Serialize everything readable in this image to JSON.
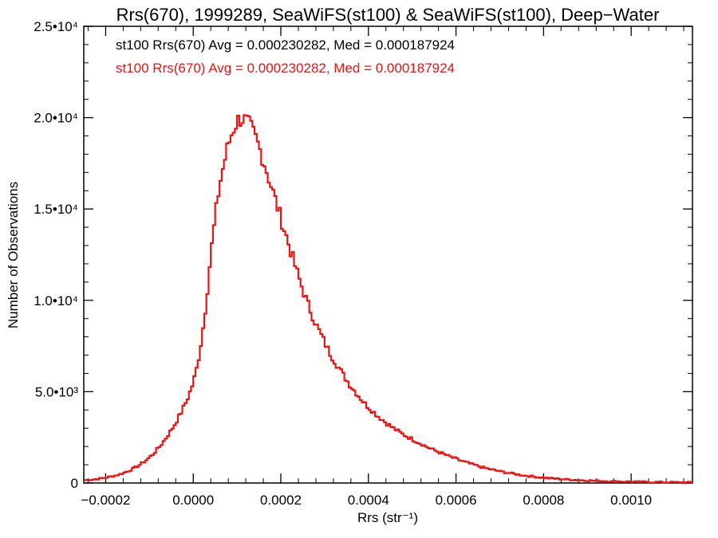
{
  "chart_data": {
    "type": "line",
    "title": "Rrs(670), 1999289, SeaWiFS(st100) & SeaWiFS(st100), Deep−Water",
    "xlabel": "Rrs (str⁻¹)",
    "ylabel": "Number of Observations",
    "xlim": [
      -0.00025,
      0.00114
    ],
    "ylim": [
      0,
      25000
    ],
    "x_ticks": [
      {
        "value": -0.0002,
        "label": "−0.0002"
      },
      {
        "value": 0.0,
        "label": "0.0000"
      },
      {
        "value": 0.0002,
        "label": "0.0002"
      },
      {
        "value": 0.0004,
        "label": "0.0004"
      },
      {
        "value": 0.0006,
        "label": "0.0006"
      },
      {
        "value": 0.0008,
        "label": "0.0008"
      },
      {
        "value": 0.001,
        "label": "0.0010"
      }
    ],
    "y_ticks": [
      {
        "value": 0,
        "label": "0"
      },
      {
        "value": 5000,
        "label": "5.0•10³"
      },
      {
        "value": 10000,
        "label": "1.0•10⁴"
      },
      {
        "value": 15000,
        "label": "1.5•10⁴"
      },
      {
        "value": 20000,
        "label": "2.0•10⁴"
      },
      {
        "value": 25000,
        "label": "2.5•10⁴"
      }
    ],
    "annotations": [
      {
        "text": "st100 Rrs(670) Avg = 0.000230282, Med = 0.000187924",
        "color": "#000000"
      },
      {
        "text": "st100 Rrs(670) Avg = 0.000230282, Med = 0.000187924",
        "color": "#ee1111"
      }
    ],
    "series": [
      {
        "color": "#ee1111",
        "bin_width": 5e-06,
        "x": [
          -0.00025,
          -0.00024,
          -0.00023,
          -0.00022,
          -0.00021,
          -0.0002,
          -0.00019,
          -0.00018,
          -0.00017,
          -0.00016,
          -0.00015,
          -0.00014,
          -0.00013,
          -0.00012,
          -0.00011,
          -0.0001,
          -9e-05,
          -8e-05,
          -7e-05,
          -6e-05,
          -5e-05,
          -4e-05,
          -3e-05,
          -2e-05,
          -1e-05,
          0.0,
          1e-05,
          2e-05,
          3e-05,
          4e-05,
          5e-05,
          6e-05,
          7e-05,
          8e-05,
          9e-05,
          0.0001,
          0.00011,
          0.00012,
          0.00013,
          0.00014,
          0.00015,
          0.00016,
          0.00017,
          0.00018,
          0.00019,
          0.0002,
          0.00021,
          0.00022,
          0.00023,
          0.00024,
          0.00025,
          0.00026,
          0.00027,
          0.00028,
          0.00029,
          0.0003,
          0.00031,
          0.00032,
          0.00033,
          0.00034,
          0.00035,
          0.00036,
          0.00037,
          0.00038,
          0.00039,
          0.0004,
          0.00042,
          0.00044,
          0.00046,
          0.00048,
          0.0005,
          0.00052,
          0.00054,
          0.00056,
          0.00058,
          0.0006,
          0.00062,
          0.00064,
          0.00066,
          0.00068,
          0.0007,
          0.00072,
          0.00074,
          0.00076,
          0.00078,
          0.0008,
          0.00082,
          0.00084,
          0.00086,
          0.00088,
          0.0009,
          0.00092,
          0.00094,
          0.00096,
          0.00098,
          0.001,
          0.00102,
          0.00104,
          0.00106,
          0.00108,
          0.0011,
          0.00112,
          0.00114
        ],
        "y": [
          150,
          170,
          190,
          220,
          250,
          290,
          340,
          400,
          460,
          540,
          640,
          750,
          880,
          1030,
          1200,
          1400,
          1630,
          1900,
          2200,
          2550,
          2900,
          3300,
          3750,
          4250,
          4800,
          5500,
          6500,
          8000,
          10000,
          12500,
          14500,
          16300,
          17500,
          18500,
          19300,
          19800,
          20000,
          19800,
          19500,
          19000,
          18400,
          17700,
          16900,
          16100,
          15300,
          14500,
          13700,
          12900,
          12100,
          11300,
          10600,
          9900,
          9300,
          8700,
          8200,
          7700,
          7200,
          6800,
          6400,
          6000,
          5650,
          5300,
          5000,
          4700,
          4400,
          4150,
          3700,
          3300,
          2950,
          2650,
          2400,
          2150,
          1900,
          1700,
          1500,
          1320,
          1150,
          1000,
          860,
          740,
          640,
          550,
          470,
          400,
          340,
          290,
          250,
          215,
          185,
          160,
          140,
          120,
          105,
          90,
          80,
          70,
          60,
          52,
          45,
          40,
          36,
          32,
          28
        ]
      }
    ]
  }
}
